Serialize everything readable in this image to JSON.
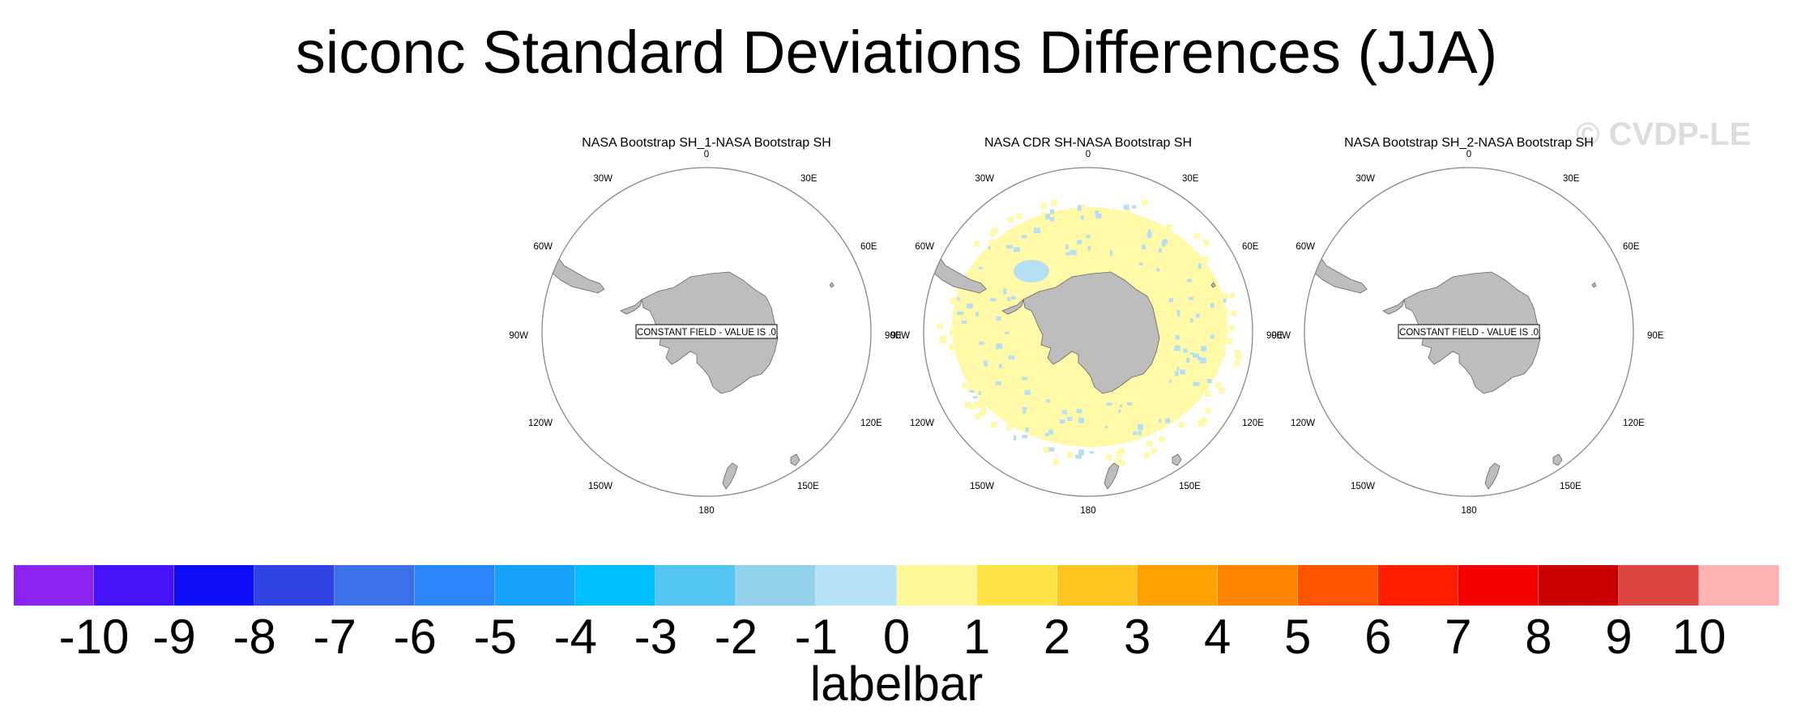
{
  "title": "siconc Standard Deviations Differences (JJA)",
  "watermark": "© CVDP-LE",
  "panels": [
    {
      "title": "NASA Bootstrap SH_1-NASA Bootstrap SH",
      "constant_label": "CONSTANT FIELD - VALUE IS .0",
      "shaded": false
    },
    {
      "title": "NASA CDR SH-NASA Bootstrap SH",
      "constant_label": "",
      "shaded": true
    },
    {
      "title": "NASA Bootstrap SH_2-NASA Bootstrap SH",
      "constant_label": "CONSTANT FIELD - VALUE IS .0",
      "shaded": false
    }
  ],
  "longitude_labels": [
    "0",
    "30E",
    "60E",
    "90E",
    "120E",
    "150E",
    "180",
    "150W",
    "120W",
    "90W",
    "60W",
    "30W"
  ],
  "colors": {
    "land": "#bdbdbd",
    "boundary": "#888888",
    "field_positive": "#fff9a8",
    "field_negative": "#b7dff3"
  },
  "colorbar": {
    "title": "labelbar",
    "labels": [
      "-10",
      "-9",
      "-8",
      "-7",
      "-6",
      "-5",
      "-4",
      "-3",
      "-2",
      "-1",
      "0",
      "1",
      "2",
      "3",
      "4",
      "5",
      "6",
      "7",
      "8",
      "9",
      "10"
    ],
    "colors": [
      "#8a22f0",
      "#4511f6",
      "#0c0cf4",
      "#2f44e2",
      "#3a70e8",
      "#2a86f8",
      "#16a2fb",
      "#00bdfe",
      "#54c4f0",
      "#94d2ec",
      "#b8e2f5",
      "#fff899",
      "#ffe448",
      "#ffc420",
      "#ffa200",
      "#ff8400",
      "#ff5400",
      "#ff1e00",
      "#f40000",
      "#c80000",
      "#dd4444",
      "#ffb3b3"
    ]
  }
}
